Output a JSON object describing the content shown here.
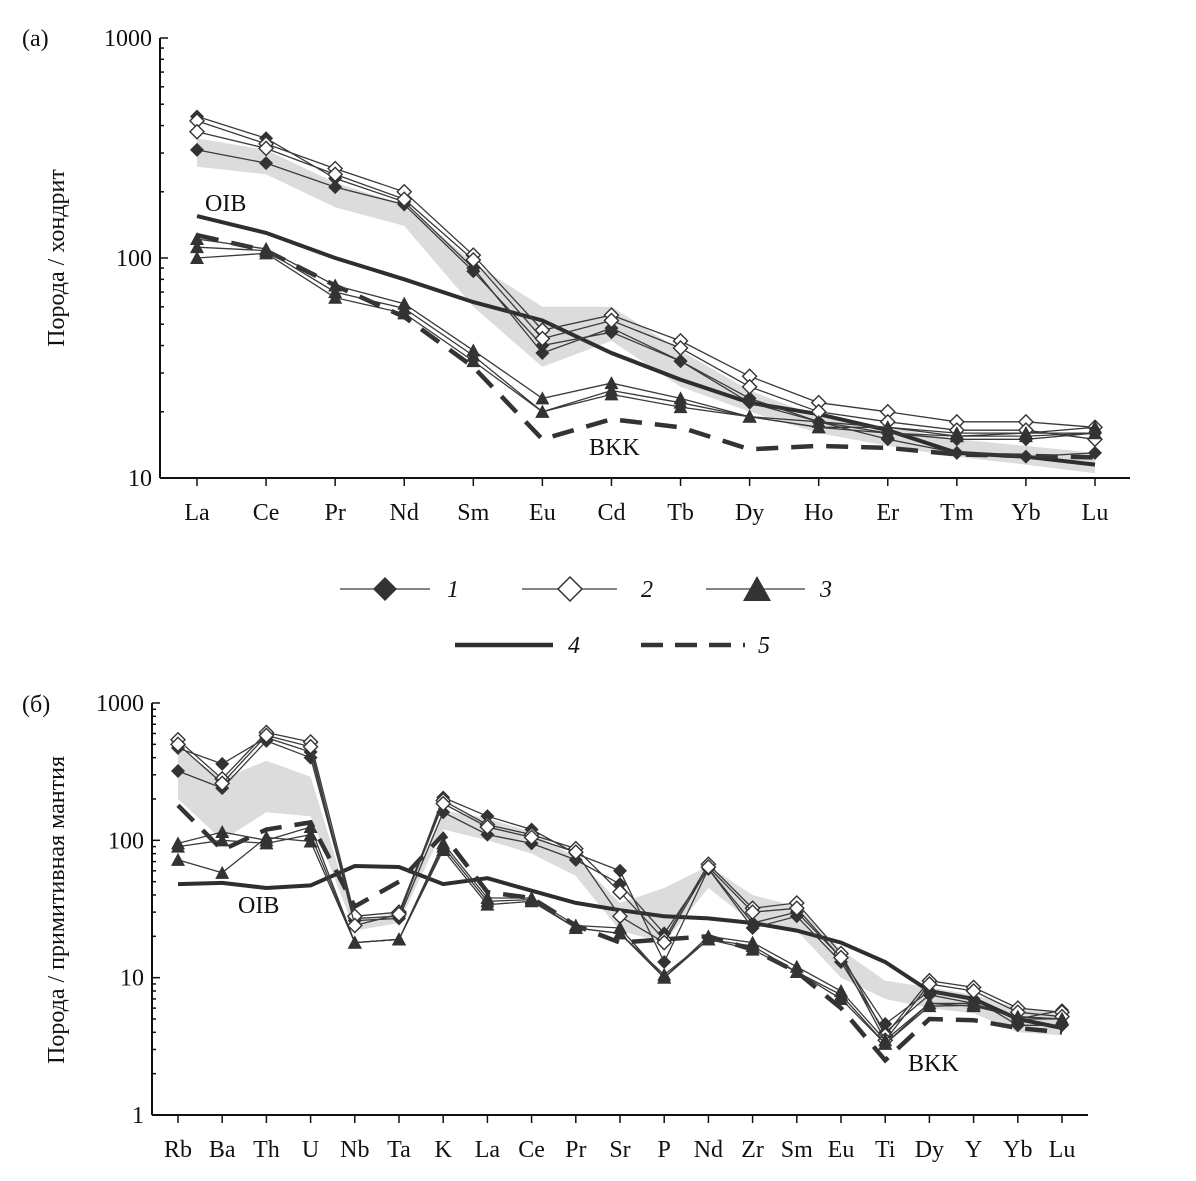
{
  "chart_data": [
    {
      "panel_label": "(а)",
      "type": "line",
      "yscale": "log",
      "ylim": [
        10,
        1000
      ],
      "yticks": [
        "10",
        "100",
        "1000"
      ],
      "ylabel": "Порода / хондрит",
      "xlabel": "",
      "categories": [
        "La",
        "Ce",
        "Pr",
        "Nd",
        "Sm",
        "Eu",
        "Cd",
        "Tb",
        "Dy",
        "Ho",
        "Er",
        "Tm",
        "Yb",
        "Lu"
      ],
      "shaded_band": {
        "upper": [
          350,
          310,
          220,
          175,
          95,
          60,
          60,
          38,
          25,
          19,
          17,
          15,
          14,
          13
        ],
        "lower": [
          260,
          240,
          170,
          140,
          60,
          32,
          42,
          26,
          20,
          16,
          14,
          12.5,
          11.5,
          10.5
        ]
      },
      "series": [
        {
          "marker": "diamond-filled",
          "values": [
            440,
            350,
            230,
            180,
            90,
            37,
            48,
            34,
            22,
            18,
            15,
            13,
            12.5,
            13
          ]
        },
        {
          "marker": "diamond-filled",
          "values": [
            310,
            270,
            210,
            175,
            87,
            40,
            46,
            34,
            23,
            18,
            16,
            15,
            15,
            16
          ]
        },
        {
          "marker": "diamond-open",
          "values": [
            420,
            330,
            255,
            200,
            103,
            47,
            55,
            42,
            29,
            22,
            20,
            18,
            18,
            17
          ]
        },
        {
          "marker": "diamond-open",
          "values": [
            375,
            315,
            240,
            185,
            98,
            43,
            52,
            39,
            26,
            20,
            18,
            16.5,
            16.5,
            15
          ]
        },
        {
          "marker": "triangle-filled",
          "values": [
            122,
            110,
            75,
            62,
            38,
            23,
            27,
            23,
            19,
            18,
            17,
            16,
            16,
            17
          ]
        },
        {
          "marker": "triangle-filled",
          "values": [
            112,
            108,
            70,
            59,
            36,
            20,
            25,
            22,
            19,
            17,
            17,
            15.5,
            16,
            16
          ]
        },
        {
          "marker": "triangle-filled",
          "values": [
            100,
            105,
            66,
            56,
            34,
            20,
            24,
            21,
            19,
            17,
            16,
            15.5,
            15.5,
            16
          ]
        },
        {
          "marker": "none-solid",
          "values": [
            155,
            130,
            100,
            80,
            63,
            52,
            37,
            28,
            22,
            19.5,
            16.5,
            13,
            12.5,
            11.5
          ]
        },
        {
          "marker": "none-dashed",
          "values": [
            127,
            108,
            75,
            54,
            32,
            15,
            18.5,
            17,
            13.5,
            14,
            13.7,
            12.8,
            12.6,
            12.4
          ]
        }
      ],
      "annotations": [
        "OIB",
        "BKK"
      ]
    },
    {
      "panel_label": "(б)",
      "type": "line",
      "yscale": "log",
      "ylim": [
        1,
        1000
      ],
      "yticks": [
        "1",
        "10",
        "100",
        "1000"
      ],
      "ylabel": "Порода / примитивная мантия",
      "xlabel": "",
      "categories": [
        "Rb",
        "Ba",
        "Th",
        "U",
        "Nb",
        "Ta",
        "K",
        "La",
        "Ce",
        "Pr",
        "Sr",
        "P",
        "Nd",
        "Zr",
        "Sm",
        "Eu",
        "Ti",
        "Dy",
        "Y",
        "Yb",
        "Lu"
      ],
      "shaded_band": {
        "upper": [
          480,
          280,
          380,
          290,
          26,
          30,
          165,
          145,
          115,
          75,
          35,
          45,
          65,
          40,
          33,
          16,
          9.5,
          8.5,
          7.5,
          6,
          5.5
        ],
        "lower": [
          200,
          100,
          160,
          150,
          22,
          25,
          120,
          100,
          80,
          55,
          22,
          18,
          45,
          25,
          22,
          10,
          7,
          6,
          5.5,
          4,
          3.8
        ]
      },
      "series": [
        {
          "marker": "diamond-filled",
          "values": [
            470,
            360,
            560,
            440,
            27,
            28,
            205,
            150,
            120,
            80,
            60,
            13,
            62,
            25,
            30,
            14,
            4.6,
            8,
            7,
            4.5,
            4.5
          ]
        },
        {
          "marker": "diamond-filled",
          "values": [
            320,
            240,
            530,
            400,
            26,
            27,
            160,
            110,
            95,
            72,
            48,
            21,
            62,
            23,
            28,
            13,
            4,
            7.5,
            6.5,
            5,
            5.8
          ]
        },
        {
          "marker": "diamond-open",
          "values": [
            540,
            280,
            610,
            520,
            28,
            30,
            195,
            130,
            110,
            87,
            42,
            19,
            67,
            32,
            35,
            15,
            3.8,
            9.5,
            8.5,
            6,
            5.6
          ]
        },
        {
          "marker": "diamond-open",
          "values": [
            500,
            260,
            580,
            480,
            24,
            29,
            185,
            125,
            105,
            82,
            28,
            18,
            64,
            30,
            32,
            14,
            3.5,
            9,
            8,
            5.6,
            5.2
          ]
        },
        {
          "marker": "triangle-filled",
          "values": [
            95,
            115,
            100,
            125,
            18,
            19,
            95,
            38,
            38,
            24,
            23,
            10,
            20,
            18,
            12,
            8,
            3.5,
            6.5,
            6.5,
            5,
            5
          ]
        },
        {
          "marker": "triangle-filled",
          "values": [
            90,
            100,
            95,
            110,
            18,
            19,
            90,
            36,
            37,
            23,
            21,
            10.5,
            19,
            17,
            11,
            7.5,
            3.3,
            6.5,
            6.2,
            5.2,
            5
          ]
        },
        {
          "marker": "triangle-filled",
          "values": [
            72,
            58,
            105,
            98,
            18,
            19,
            85,
            34,
            36,
            23,
            21,
            10,
            19,
            16,
            11,
            7,
            3.3,
            6.2,
            6.3,
            5.2,
            5
          ]
        },
        {
          "marker": "none-solid",
          "values": [
            48,
            49,
            45,
            47,
            65,
            64,
            48,
            53,
            43,
            35,
            31,
            28,
            27,
            25,
            22,
            18,
            13,
            8,
            7,
            5,
            4.3
          ]
        },
        {
          "marker": "none-dashed",
          "values": [
            180,
            85,
            120,
            135,
            33,
            50,
            110,
            42,
            38,
            24,
            18,
            19,
            20,
            16,
            11,
            6,
            2.5,
            5,
            4.9,
            4.3,
            4
          ]
        }
      ],
      "annotations": [
        "OIB",
        "BKK"
      ]
    }
  ],
  "legend": [
    {
      "id": "1",
      "label": "1",
      "marker": "diamond-filled"
    },
    {
      "id": "2",
      "label": "2",
      "marker": "diamond-open"
    },
    {
      "id": "3",
      "label": "3",
      "marker": "triangle-filled"
    },
    {
      "id": "4",
      "label": "4",
      "marker": "none-solid"
    },
    {
      "id": "5",
      "label": "5",
      "marker": "none-dashed"
    }
  ],
  "colors": {
    "line": "#3a3a3a",
    "marker_fill": "#333333",
    "band": "#dcdcdc",
    "thick_line": "#2e2e2e",
    "dashed_line": "#333333"
  }
}
